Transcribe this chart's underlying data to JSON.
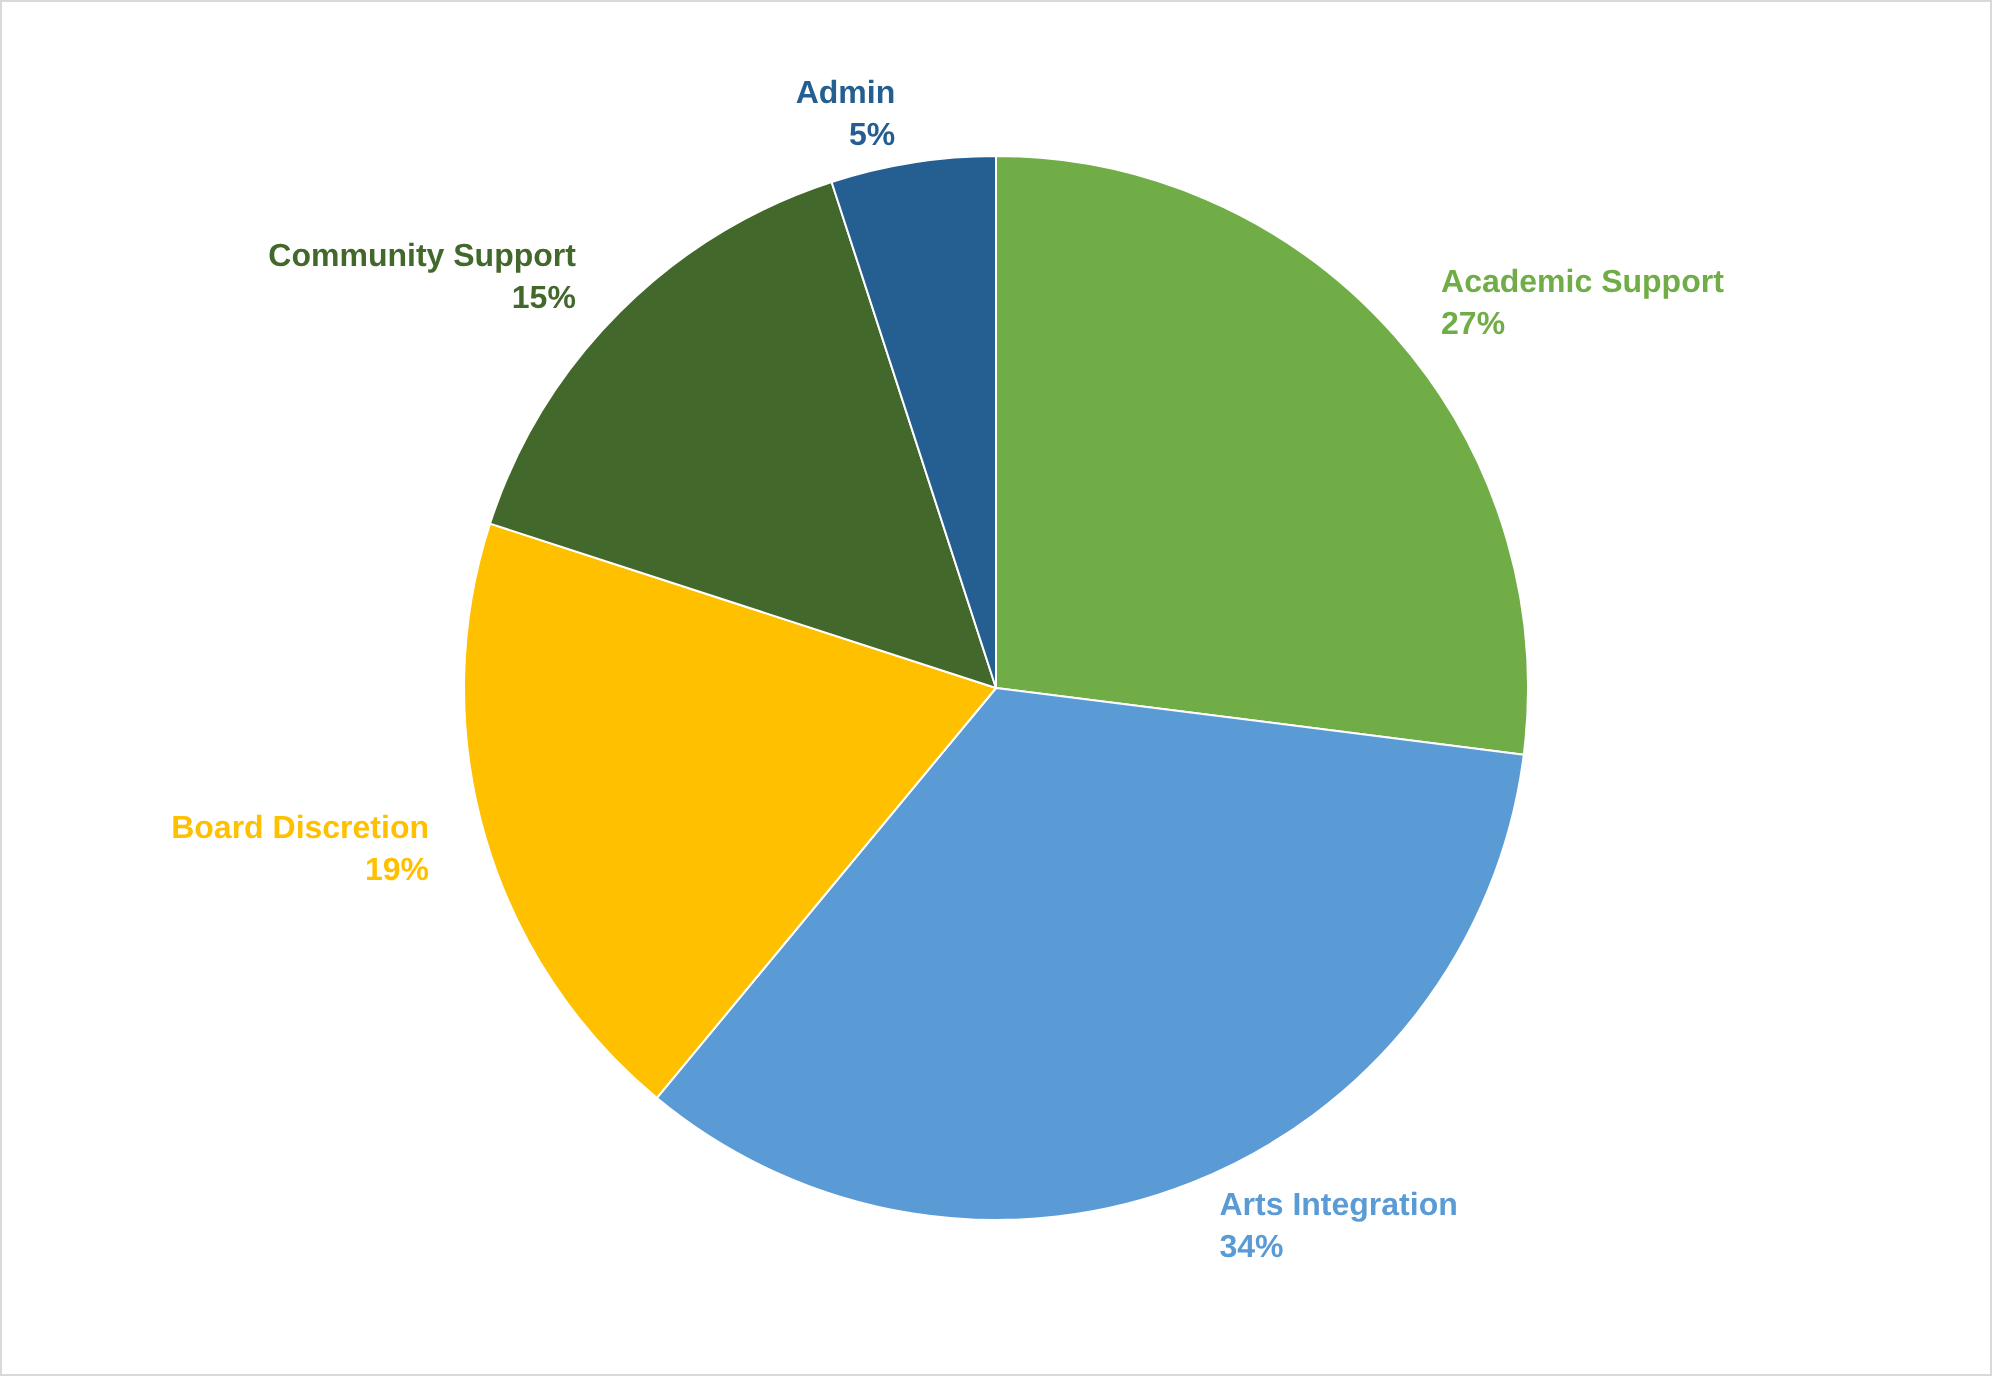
{
  "chart_data": {
    "type": "pie",
    "categories": [
      "Academic Support",
      "Arts Integration",
      "Board Discretion",
      "Community Support",
      "Admin"
    ],
    "values": [
      27,
      34,
      19,
      15,
      5
    ],
    "value_labels": [
      "27%",
      "34%",
      "19%",
      "15%",
      "5%"
    ],
    "colors": [
      "#70ad47",
      "#5b9bd5",
      "#ffc000",
      "#43682b",
      "#255e91"
    ],
    "legend": false
  }
}
